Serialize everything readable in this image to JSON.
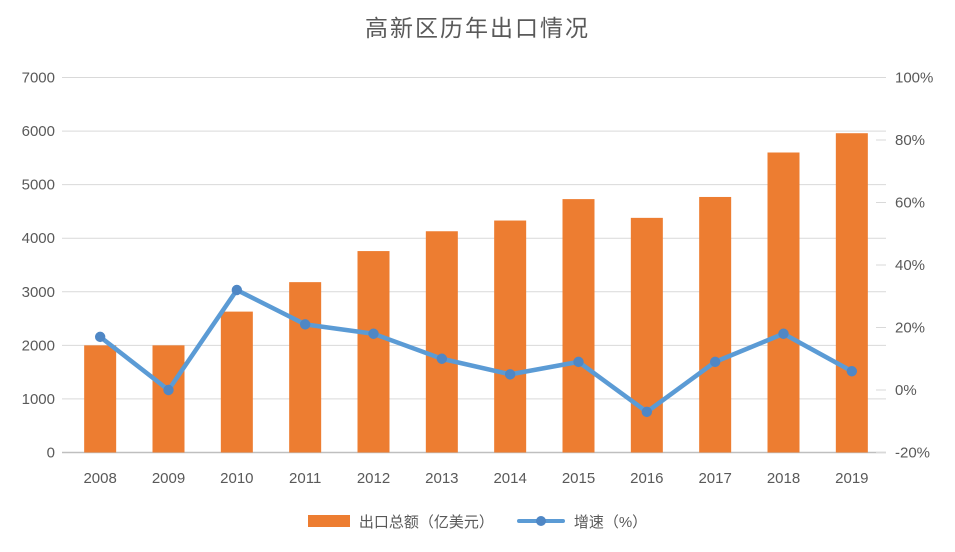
{
  "title": "高新区历年出口情况",
  "legend": {
    "bar_label": "出口总额（亿美元）",
    "line_label": "增速（%）"
  },
  "colors": {
    "bar": "#ED7D31",
    "line": "#5B9BD5",
    "line_marker": "#4F87C5",
    "grid": "#D9D9D9",
    "axis": "#BFBFBF",
    "text": "#595959"
  },
  "chart_data": {
    "type": "bar",
    "subtype": "bar-line-combo",
    "title": "高新区历年出口情况",
    "categories": [
      "2008",
      "2009",
      "2010",
      "2011",
      "2012",
      "2013",
      "2014",
      "2015",
      "2016",
      "2017",
      "2018",
      "2019"
    ],
    "series": [
      {
        "name": "出口总额（亿美元）",
        "type": "bar",
        "axis": "left",
        "values": [
          2000,
          2000,
          2630,
          3180,
          3760,
          4130,
          4330,
          4730,
          4380,
          4770,
          5600,
          5960
        ]
      },
      {
        "name": "增速（%）",
        "type": "line",
        "axis": "right",
        "values": [
          17,
          0,
          32,
          21,
          18,
          10,
          5,
          9,
          -7,
          9,
          18,
          6
        ]
      }
    ],
    "xlabel": "",
    "ylabel_left": "",
    "ylabel_right": "",
    "y_left": {
      "min": 0,
      "max": 7000,
      "step": 1000,
      "ticks": [
        "0",
        "1000",
        "2000",
        "3000",
        "4000",
        "5000",
        "6000",
        "7000"
      ]
    },
    "y_right": {
      "min": -20,
      "max": 100,
      "step": 20,
      "ticks": [
        "-20%",
        "0%",
        "20%",
        "40%",
        "60%",
        "80%",
        "100%"
      ]
    },
    "grid": true,
    "legend_position": "bottom"
  }
}
